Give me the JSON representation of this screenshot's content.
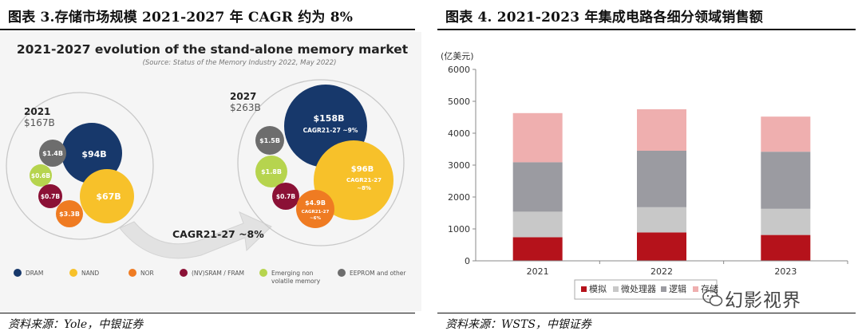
{
  "left": {
    "title": "图表 3.存储市场规模 2021-2027 年 CAGR 约为 8%",
    "source": "资料来源：Yole，中银证券",
    "figure": {
      "heading": "2021-2027 evolution of the stand-alone memory market",
      "subheading": "(Source: Status of the Memory Industry 2022, May 2022)",
      "year_2021": "2021",
      "total_2021": "$167B",
      "year_2027": "2027",
      "total_2027": "$263B",
      "bubbles_2021": {
        "dram": "$94B",
        "nand": "$67B",
        "eeprom": "$1.4B",
        "emerging": "$0.6B",
        "sram": "$0.7B",
        "nor": "$3.3B"
      },
      "bubbles_2027": {
        "dram": "$158B",
        "dram_cagr": "CAGR21-27 ~9%",
        "nand": "$96B",
        "nand_cagr_1": "CAGR21-27",
        "nand_cagr_2": "~8%",
        "eeprom": "$1.5B",
        "emerging": "$1.8B",
        "sram": "$0.7B",
        "nor": "$4.9B",
        "nor_cagr_1": "CAGR21-27",
        "nor_cagr_2": "~6%"
      },
      "arrow_label": "CAGR21-27 ~8%",
      "legend": [
        {
          "label": "DRAM",
          "color": "#17386b"
        },
        {
          "label": "NAND",
          "color": "#f7c12a"
        },
        {
          "label": "NOR",
          "color": "#ef7b22"
        },
        {
          "label": "(NV)SRAM / FRAM",
          "color": "#8b1136"
        },
        {
          "label": "Emerging non volatile memory",
          "color": "#b6d44e"
        },
        {
          "label": "EEPROM and other",
          "color": "#6d6d6d"
        }
      ]
    }
  },
  "right": {
    "title": "图表 4. 2021-2023 年集成电路各细分领域销售额",
    "source": "资料来源：WSTS，中银证券",
    "watermark": "幻影视界"
  },
  "chart_data": {
    "type": "bar",
    "stacked": true,
    "categories": [
      "2021",
      "2022",
      "2023"
    ],
    "ylabel": "(亿美元)",
    "ylim": [
      0,
      6000
    ],
    "yticks": [
      0,
      1000,
      2000,
      3000,
      4000,
      5000,
      6000
    ],
    "grid": false,
    "legend_position": "bottom",
    "series": [
      {
        "name": "模拟",
        "color": "#b5121b",
        "values": [
          740,
          890,
          810
        ]
      },
      {
        "name": "微处理器",
        "color": "#c8c8c8",
        "values": [
          800,
          790,
          820
        ]
      },
      {
        "name": "逻辑",
        "color": "#9b9ba1",
        "values": [
          1550,
          1770,
          1790
        ]
      },
      {
        "name": "存储",
        "color": "#efafaf",
        "values": [
          1540,
          1300,
          1100
        ]
      }
    ]
  }
}
